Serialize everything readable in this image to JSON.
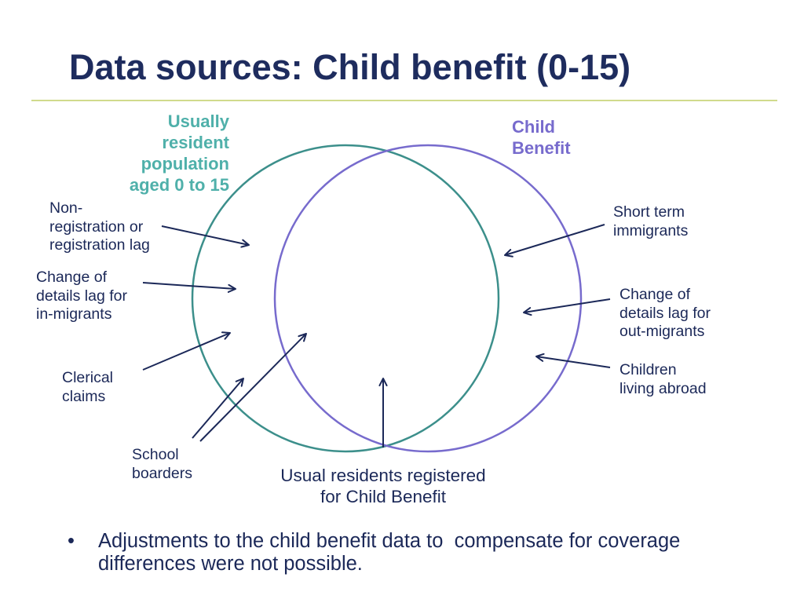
{
  "colors": {
    "title": "#1e2c5e",
    "text": "#1b2858",
    "divider": "#d0da8c",
    "population_circle": "#3c8f8b",
    "population_label": "#4fb0aa",
    "child_benefit": "#776bcd"
  },
  "slide": {
    "title": "Data sources: Child benefit (0-15)"
  },
  "diagram": {
    "sets": {
      "usually_resident_population": {
        "label_lines": [
          "Usually",
          "resident",
          "population",
          "aged 0 to 15"
        ]
      },
      "child_benefit": {
        "label_lines": [
          "Child",
          "Benefit"
        ]
      }
    },
    "annotations": {
      "non_registration": [
        "Non-",
        "registration or",
        "registration lag"
      ],
      "change_of_details_in": [
        "Change of",
        "details lag for",
        "in-migrants"
      ],
      "clerical_claims": [
        "Clerical",
        "claims"
      ],
      "school_boarders": [
        "School",
        "boarders"
      ],
      "short_term_immigrants": [
        "Short term",
        "immigrants"
      ],
      "change_of_details_out": [
        "Change of",
        "details lag for",
        "out-migrants"
      ],
      "children_living_abroad": [
        "Children",
        "living abroad"
      ]
    },
    "intersection_label": [
      "Usual residents registered",
      "for Child Benefit"
    ]
  },
  "notes": {
    "bullet_marker": "•",
    "bullets": [
      "Adjustments to the child benefit data to  compensate for coverage differences were not possible."
    ]
  }
}
